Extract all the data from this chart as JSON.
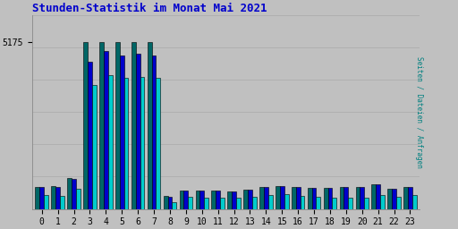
{
  "title": "Stunden-Statistik im Monat Mai 2021",
  "ylabel": "Seiten / Dateien / Anfragen",
  "xlabel_ticks": [
    "0",
    "1",
    "2",
    "3",
    "4",
    "5",
    "6",
    "7",
    "8",
    "9",
    "10",
    "11",
    "12",
    "13",
    "14",
    "15",
    "16",
    "17",
    "18",
    "19",
    "20",
    "21",
    "22",
    "23"
  ],
  "ytick_label": "5175",
  "background_color": "#c0c0c0",
  "plot_bg_color": "#c0c0c0",
  "title_color": "#0000cc",
  "ylabel_color": "#008080",
  "bar_width": 0.27,
  "seiten": [
    680,
    700,
    950,
    5175,
    5175,
    5175,
    5175,
    5175,
    390,
    570,
    560,
    570,
    550,
    590,
    690,
    710,
    680,
    650,
    650,
    680,
    670,
    760,
    630,
    690
  ],
  "dateien": [
    670,
    680,
    940,
    4550,
    4900,
    4750,
    4800,
    4750,
    385,
    560,
    555,
    565,
    545,
    585,
    685,
    700,
    675,
    645,
    645,
    675,
    665,
    755,
    625,
    685
  ],
  "anfragen": [
    430,
    410,
    620,
    3850,
    4150,
    4050,
    4100,
    4050,
    220,
    370,
    355,
    360,
    335,
    375,
    440,
    450,
    415,
    375,
    355,
    355,
    355,
    420,
    365,
    420
  ],
  "color_seiten": "#006666",
  "color_dateien": "#0000cc",
  "color_anfragen": "#00cccc",
  "border_color": "#000000",
  "grid_color": "#aaaaaa",
  "ylim": [
    0,
    6000
  ],
  "ytick_val": 5175,
  "tick_fontsize": 7,
  "title_fontsize": 9
}
